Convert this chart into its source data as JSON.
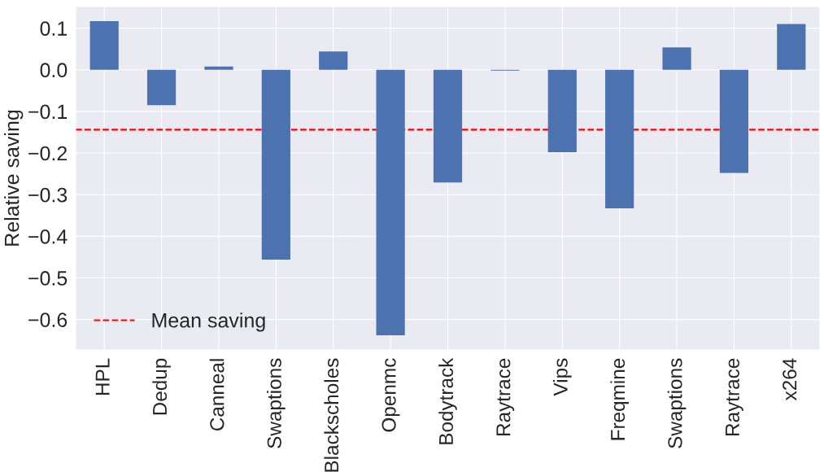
{
  "chart_data": {
    "type": "bar",
    "ylabel": "Relative saving",
    "categories": [
      "HPL",
      "Dedup",
      "Canneal",
      "Swaptions",
      "Blackscholes",
      "Openmc",
      "Bodytrack",
      "Raytrace",
      "Vips",
      "Freqmine",
      "Swaptions",
      "Raytrace",
      "x264"
    ],
    "values": [
      0.117,
      -0.085,
      0.008,
      -0.456,
      0.044,
      -0.638,
      -0.271,
      -0.002,
      -0.198,
      -0.333,
      0.054,
      -0.248,
      0.11
    ],
    "color": "#4c72b0",
    "ylim": [
      -0.673,
      0.152
    ],
    "yticks": [
      {
        "value": 0.1,
        "label": "0.1"
      },
      {
        "value": 0.0,
        "label": "0.0"
      },
      {
        "value": -0.1,
        "label": "−0.1"
      },
      {
        "value": -0.2,
        "label": "−0.2"
      },
      {
        "value": -0.3,
        "label": "−0.3"
      },
      {
        "value": -0.4,
        "label": "−0.4"
      },
      {
        "value": -0.5,
        "label": "−0.5"
      },
      {
        "value": -0.6,
        "label": "−0.6"
      }
    ],
    "ref_lines": [
      {
        "axis": "y",
        "value": -0.144,
        "label": "Mean saving",
        "color": "#ff0000",
        "line_style": "dashed"
      }
    ],
    "grid": true,
    "legend": "bottom left"
  }
}
